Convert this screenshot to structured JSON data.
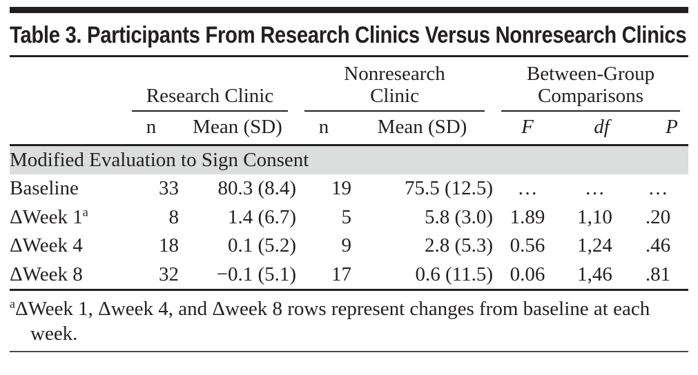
{
  "colors": {
    "ink": "#231f20",
    "section_band": "#dcdddd",
    "bottom_rule": "#4b4b4b"
  },
  "table": {
    "title": "Table 3. Participants From Research Clinics Versus Nonresearch Clinics",
    "groups": [
      "Research Clinic",
      "Nonresearch Clinic",
      "Between-Group Comparisons"
    ],
    "sub_headers": [
      "n",
      "Mean (SD)",
      "n",
      "Mean (SD)",
      "F",
      "df",
      "P"
    ],
    "section": "Modified Evaluation to Sign Consent",
    "rows": [
      {
        "label": "Baseline",
        "sup": "",
        "cells": [
          "33",
          "80.3 (8.4)",
          "19",
          "75.5 (12.5)",
          "…",
          "…",
          "…"
        ]
      },
      {
        "label": "ΔWeek 1",
        "sup": "a",
        "cells": [
          "8",
          "1.4 (6.7)",
          "5",
          "5.8 (3.0)",
          "1.89",
          "1,10",
          ".20"
        ]
      },
      {
        "label": "ΔWeek 4",
        "sup": "",
        "cells": [
          "18",
          "0.1 (5.2)",
          "9",
          "2.8 (5.3)",
          "0.56",
          "1,24",
          ".46"
        ]
      },
      {
        "label": "ΔWeek 8",
        "sup": "",
        "cells": [
          "32",
          "−0.1 (5.1)",
          "17",
          "0.6 (11.5)",
          "0.06",
          "1,46",
          ".81"
        ]
      }
    ],
    "footnote": {
      "marker": "a",
      "text": "ΔWeek 1, Δweek 4, and Δweek 8 rows represent changes from baseline at each week."
    }
  }
}
